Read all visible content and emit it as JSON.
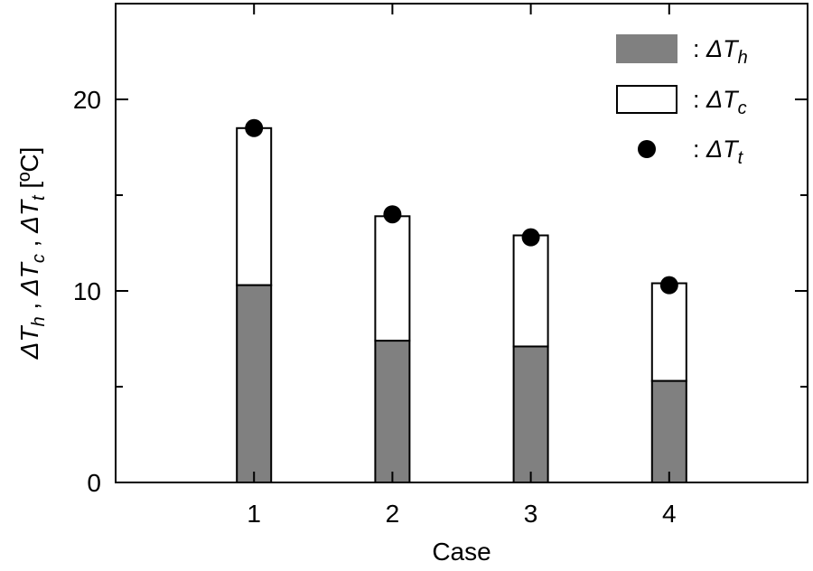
{
  "chart_data": {
    "type": "bar",
    "stacked": true,
    "title": "",
    "xlabel": "Case",
    "ylabel": {
      "prefix": "ΔT",
      "parts": [
        {
          "sym": "ΔT",
          "sub": "h",
          "sep": " , "
        },
        {
          "sym": "ΔT",
          "sub": "c",
          "sep": " , "
        },
        {
          "sym": "ΔT",
          "sub": "t",
          "sep": ""
        }
      ],
      "unit": "[ºC]"
    },
    "categories": [
      "1",
      "2",
      "3",
      "4"
    ],
    "xlim": [
      0,
      5
    ],
    "ylim": [
      0,
      25
    ],
    "yticks": [
      0,
      10,
      20
    ],
    "yticks_minor": [
      5,
      15
    ],
    "series": [
      {
        "name": "ΔTh",
        "sub": "h",
        "kind": "bar",
        "color": "#808080",
        "values": [
          10.3,
          7.4,
          7.1,
          5.3
        ]
      },
      {
        "name": "ΔTc",
        "sub": "c",
        "kind": "bar",
        "color": "#ffffff",
        "values": [
          8.2,
          6.5,
          5.8,
          5.1
        ]
      },
      {
        "name": "ΔTt",
        "sub": "t",
        "kind": "point",
        "color": "#000000",
        "values": [
          18.5,
          14.0,
          12.8,
          10.3
        ]
      }
    ],
    "legend": {
      "position": "top-right",
      "entries": [
        {
          "colon": ":",
          "sym": "ΔT",
          "sub": "h"
        },
        {
          "colon": ":",
          "sym": "ΔT",
          "sub": "c"
        },
        {
          "colon": ":",
          "sym": "ΔT",
          "sub": "t"
        }
      ]
    }
  }
}
